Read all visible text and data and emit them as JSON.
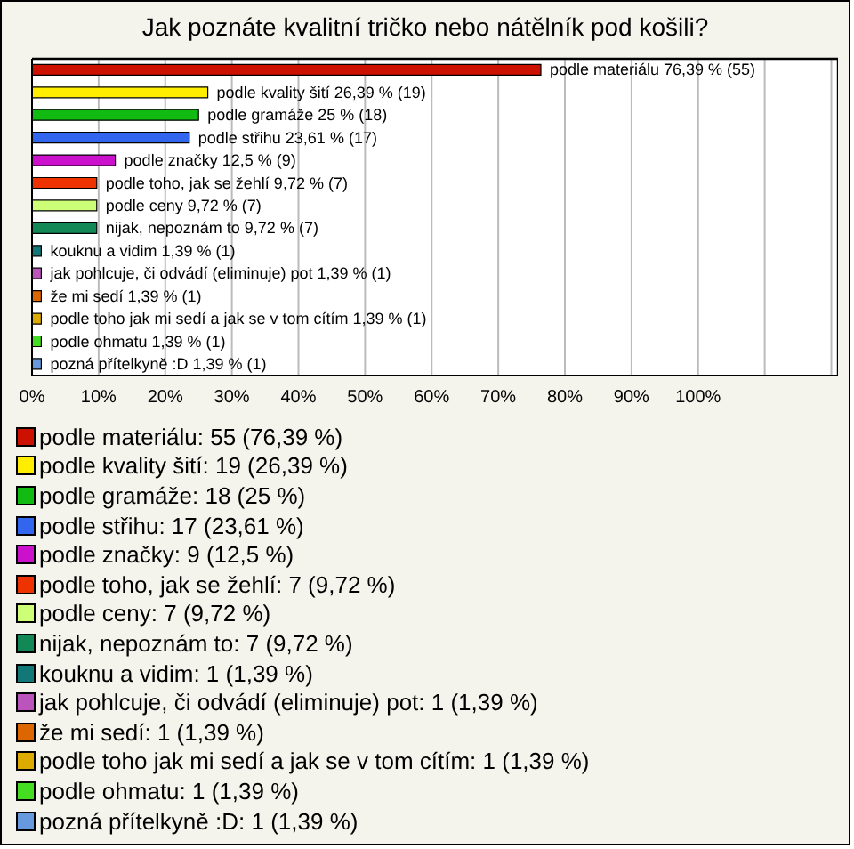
{
  "chart_data": {
    "type": "bar",
    "orientation": "horizontal",
    "title": "Jak poznáte kvalitní tričko nebo nátělník pod košili?",
    "categories": [
      null,
      null,
      null,
      null,
      null,
      null,
      null,
      null,
      null,
      null,
      null,
      null,
      null,
      null
    ],
    "series": [
      {
        "name": "podle materiálu: 55 (76,39 %)",
        "color": "#cc1100",
        "values": [
          76.39,
          null,
          null,
          null,
          null,
          null,
          null,
          null,
          null,
          null,
          null,
          null,
          null,
          null
        ],
        "value_labels": [
          "podle materiálu 76,39 % (55)",
          null,
          null,
          null,
          null,
          null,
          null,
          null,
          null,
          null,
          null,
          null,
          null,
          null
        ]
      },
      {
        "name": "podle kvality šití: 19 (26,39 %)",
        "color": "#ffee00",
        "values": [
          null,
          26.39,
          null,
          null,
          null,
          null,
          null,
          null,
          null,
          null,
          null,
          null,
          null,
          null
        ],
        "value_labels": [
          null,
          "podle kvality šití 26,39 % (19)",
          null,
          null,
          null,
          null,
          null,
          null,
          null,
          null,
          null,
          null,
          null,
          null
        ]
      },
      {
        "name": "podle gramáže: 18 (25 %)",
        "color": "#11bb11",
        "values": [
          null,
          null,
          25,
          null,
          null,
          null,
          null,
          null,
          null,
          null,
          null,
          null,
          null,
          null
        ],
        "value_labels": [
          null,
          null,
          "podle gramáže 25 % (18)",
          null,
          null,
          null,
          null,
          null,
          null,
          null,
          null,
          null,
          null,
          null
        ]
      },
      {
        "name": "podle střihu: 17 (23,61 %)",
        "color": "#3366ee",
        "values": [
          null,
          null,
          null,
          23.61,
          null,
          null,
          null,
          null,
          null,
          null,
          null,
          null,
          null,
          null
        ],
        "value_labels": [
          null,
          null,
          null,
          "podle střihu 23,61 % (17)",
          null,
          null,
          null,
          null,
          null,
          null,
          null,
          null,
          null,
          null
        ]
      },
      {
        "name": "podle značky: 9 (12,5 %)",
        "color": "#cc11cc",
        "values": [
          null,
          null,
          null,
          null,
          12.5,
          null,
          null,
          null,
          null,
          null,
          null,
          null,
          null,
          null
        ],
        "value_labels": [
          null,
          null,
          null,
          null,
          "podle značky 12,5 % (9)",
          null,
          null,
          null,
          null,
          null,
          null,
          null,
          null,
          null
        ]
      },
      {
        "name": "podle toho, jak se žehlí: 7 (9,72 %)",
        "color": "#ee3300",
        "values": [
          null,
          null,
          null,
          null,
          null,
          9.72,
          null,
          null,
          null,
          null,
          null,
          null,
          null,
          null
        ],
        "value_labels": [
          null,
          null,
          null,
          null,
          null,
          "podle toho, jak se žehlí 9,72 % (7)",
          null,
          null,
          null,
          null,
          null,
          null,
          null,
          null
        ]
      },
      {
        "name": "podle ceny: 7 (9,72 %)",
        "color": "#ccff77",
        "values": [
          null,
          null,
          null,
          null,
          null,
          null,
          9.72,
          null,
          null,
          null,
          null,
          null,
          null,
          null
        ],
        "value_labels": [
          null,
          null,
          null,
          null,
          null,
          null,
          "podle ceny 9,72 % (7)",
          null,
          null,
          null,
          null,
          null,
          null,
          null
        ]
      },
      {
        "name": "nijak, nepoznám to: 7 (9,72 %)",
        "color": "#118855",
        "values": [
          null,
          null,
          null,
          null,
          null,
          null,
          null,
          9.72,
          null,
          null,
          null,
          null,
          null,
          null
        ],
        "value_labels": [
          null,
          null,
          null,
          null,
          null,
          null,
          null,
          "nijak, nepoznám to 9,72 % (7)",
          null,
          null,
          null,
          null,
          null,
          null
        ]
      },
      {
        "name": "kouknu a vidim: 1 (1,39 %)",
        "color": "#117777",
        "values": [
          null,
          null,
          null,
          null,
          null,
          null,
          null,
          null,
          1.39,
          null,
          null,
          null,
          null,
          null
        ],
        "value_labels": [
          null,
          null,
          null,
          null,
          null,
          null,
          null,
          null,
          "kouknu a vidim 1,39 % (1)",
          null,
          null,
          null,
          null,
          null
        ]
      },
      {
        "name": "jak pohlcuje, či odvádí (eliminuje) pot: 1 (1,39 %)",
        "color": "#bb55bb",
        "values": [
          null,
          null,
          null,
          null,
          null,
          null,
          null,
          null,
          null,
          1.39,
          null,
          null,
          null,
          null
        ],
        "value_labels": [
          null,
          null,
          null,
          null,
          null,
          null,
          null,
          null,
          null,
          "jak pohlcuje, či odvádí (eliminuje) pot 1,39 % (1)",
          null,
          null,
          null,
          null
        ]
      },
      {
        "name": "že mi sedí: 1 (1,39 %)",
        "color": "#dd6600",
        "values": [
          null,
          null,
          null,
          null,
          null,
          null,
          null,
          null,
          null,
          null,
          1.39,
          null,
          null,
          null
        ],
        "value_labels": [
          null,
          null,
          null,
          null,
          null,
          null,
          null,
          null,
          null,
          null,
          "že mi sedí 1,39 % (1)",
          null,
          null,
          null
        ]
      },
      {
        "name": "podle toho jak mi sedí a jak se v tom cítím: 1 (1,39 %)",
        "color": "#ddaa00",
        "values": [
          null,
          null,
          null,
          null,
          null,
          null,
          null,
          null,
          null,
          null,
          null,
          1.39,
          null,
          null
        ],
        "value_labels": [
          null,
          null,
          null,
          null,
          null,
          null,
          null,
          null,
          null,
          null,
          null,
          "podle toho jak mi sedí a jak se v tom cítím 1,39 % (1)",
          null,
          null
        ]
      },
      {
        "name": "podle ohmatu: 1 (1,39 %)",
        "color": "#44dd22",
        "values": [
          null,
          null,
          null,
          null,
          null,
          null,
          null,
          null,
          null,
          null,
          null,
          null,
          1.39,
          null
        ],
        "value_labels": [
          null,
          null,
          null,
          null,
          null,
          null,
          null,
          null,
          null,
          null,
          null,
          null,
          "podle ohmatu 1,39 % (1)",
          null
        ]
      },
      {
        "name": "pozná přítelkyně :D: 1 (1,39 %)",
        "color": "#6699dd",
        "values": [
          null,
          null,
          null,
          null,
          null,
          null,
          null,
          null,
          null,
          null,
          null,
          null,
          null,
          1.39
        ],
        "value_labels": [
          null,
          null,
          null,
          null,
          null,
          null,
          null,
          null,
          null,
          null,
          null,
          null,
          null,
          "pozná přítelkyně :D 1,39 % (1)"
        ]
      }
    ],
    "xlim": [
      0,
      121
    ],
    "xticks": [
      {
        "value": 0,
        "label": "0%"
      },
      {
        "value": 10,
        "label": "10%"
      },
      {
        "value": 20,
        "label": "20%"
      },
      {
        "value": 30,
        "label": "30%"
      },
      {
        "value": 40,
        "label": "40%"
      },
      {
        "value": 50,
        "label": "50%"
      },
      {
        "value": 60,
        "label": "60%"
      },
      {
        "value": 70,
        "label": "70%"
      },
      {
        "value": 80,
        "label": "80%"
      },
      {
        "value": 90,
        "label": "90%"
      },
      {
        "value": 100,
        "label": "100%"
      },
      {
        "value": 110,
        "label": null
      },
      {
        "value": 120,
        "label": null
      }
    ],
    "tick_labels": "x",
    "grid": "x",
    "legend": "bottom"
  }
}
